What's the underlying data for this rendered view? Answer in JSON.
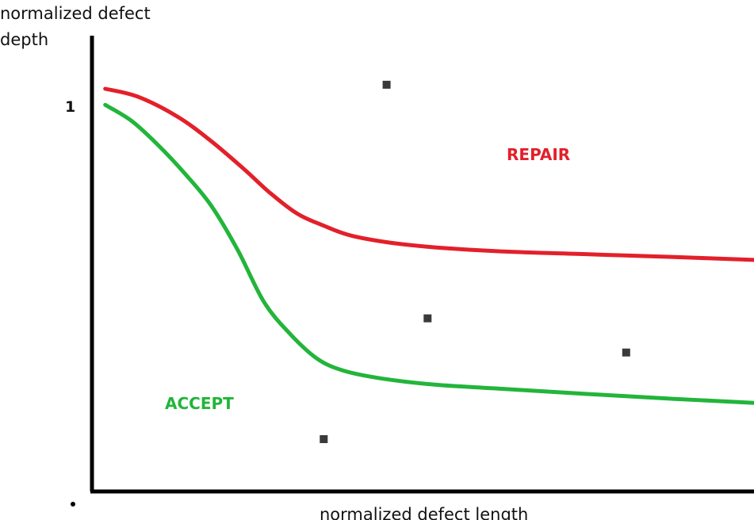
{
  "chart_data": {
    "type": "line",
    "ylabel_line1": "normalized defect",
    "ylabel_line2": "depth",
    "xlabel": "normalized defect length",
    "y_tick_label": "1",
    "xlim": [
      0,
      1
    ],
    "ylim": [
      0,
      1.03
    ],
    "grid": false,
    "legend": "none",
    "colors": {
      "repair": "#e3202a",
      "accept": "#22b53a",
      "axis": "#000000",
      "point": "#3a3a3a"
    },
    "series": [
      {
        "key": "repair",
        "x": [
          0.02,
          0.07,
          0.13,
          0.18,
          0.23,
          0.27,
          0.31,
          0.35,
          0.39,
          0.45,
          0.52,
          0.62,
          0.75,
          0.88,
          1.0
        ],
        "y": [
          1.0,
          0.98,
          0.93,
          0.87,
          0.8,
          0.74,
          0.69,
          0.66,
          0.636,
          0.618,
          0.606,
          0.596,
          0.589,
          0.582,
          0.575
        ]
      },
      {
        "key": "accept",
        "x": [
          0.02,
          0.06,
          0.1,
          0.14,
          0.18,
          0.22,
          0.26,
          0.3,
          0.34,
          0.38,
          0.44,
          0.52,
          0.62,
          0.75,
          0.88,
          1.0
        ],
        "y": [
          0.96,
          0.92,
          0.86,
          0.79,
          0.71,
          0.6,
          0.47,
          0.39,
          0.33,
          0.3,
          0.28,
          0.265,
          0.255,
          0.242,
          0.23,
          0.22
        ]
      }
    ],
    "points": [
      {
        "x": 0.445,
        "y": 1.01
      },
      {
        "x": 0.507,
        "y": 0.43
      },
      {
        "x": 0.807,
        "y": 0.345
      },
      {
        "x": 0.35,
        "y": 0.13
      }
    ],
    "region_labels": {
      "repair": "REPAIR",
      "accept": "ACCEPT"
    }
  }
}
